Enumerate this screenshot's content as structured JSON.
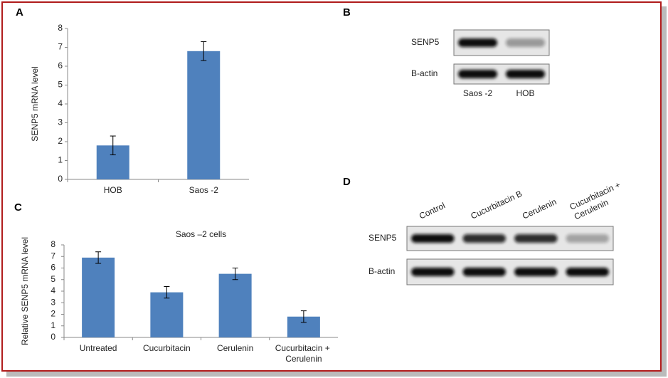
{
  "chart_data": [
    {
      "type": "bar",
      "panel": "A",
      "ylabel": "SENP5 mRNA level",
      "categories": [
        "HOB",
        "Saos -2"
      ],
      "values": [
        1.8,
        6.8
      ],
      "errors": [
        0.5,
        0.5
      ],
      "color": "#4f81bd",
      "ylim": [
        0,
        8
      ],
      "yticks": [
        0,
        1,
        2,
        3,
        4,
        5,
        6,
        7,
        8
      ]
    },
    {
      "type": "bar",
      "panel": "C",
      "title": "Saos –2 cells",
      "ylabel": "Relative SENP5 mRNA level",
      "categories": [
        "Untreated",
        "Cucurbitacin",
        "Cerulenin",
        "Cucurbitacin + Cerulenin"
      ],
      "values": [
        6.9,
        3.9,
        5.5,
        1.8
      ],
      "errors": [
        0.5,
        0.5,
        0.5,
        0.5
      ],
      "color": "#4f81bd",
      "ylim": [
        0,
        8
      ],
      "yticks": [
        0,
        1,
        2,
        3,
        4,
        5,
        6,
        7,
        8
      ]
    }
  ],
  "blots": [
    {
      "panel": "B",
      "rows": [
        "SENP5",
        "B-actin"
      ],
      "lanes": [
        "Saos -2",
        "HOB"
      ]
    },
    {
      "panel": "D",
      "rows": [
        "SENP5",
        "B-actin"
      ],
      "lanes": [
        "Control",
        "Cucurbitacin B",
        "Cerulenin",
        "Cucurbitacin + Cerulenin"
      ]
    }
  ]
}
